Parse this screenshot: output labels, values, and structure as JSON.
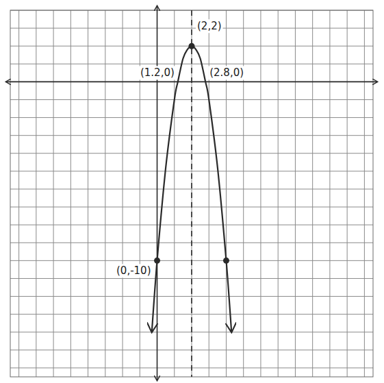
{
  "chart_data": {
    "type": "line",
    "x": [
      -0.3,
      0,
      0.5,
      1,
      1.2,
      1.5,
      1.75,
      2,
      2.25,
      2.5,
      2.8,
      3,
      3.5,
      4,
      4.3
    ],
    "series": [
      {
        "color": "#2a2a2a",
        "marker": "none",
        "line_style": "solid",
        "values": [
          -13.9,
          -10,
          -4.8,
          -1,
          0,
          1.3,
          1.8,
          2,
          1.8,
          1.3,
          0,
          -1,
          -4.8,
          -10,
          -13.9
        ]
      }
    ],
    "points": {
      "x": [
        2,
        0,
        4
      ],
      "y": [
        2,
        -10,
        -10
      ],
      "color": "#2a2a2a"
    },
    "symmetry_x": 2,
    "annotations": [
      {
        "text": "(2,2)",
        "x": 2,
        "y": 2
      },
      {
        "text": "(1.2,0)",
        "x": 1.2,
        "y": 0
      },
      {
        "text": "(2.8,0)",
        "x": 2.8,
        "y": 0
      },
      {
        "text": "(0,-10)",
        "x": 0,
        "y": -10
      }
    ],
    "xlim": [
      -8.5,
      12.5
    ],
    "ylim": [
      -16.5,
      4
    ],
    "xticks": [
      -8,
      -7,
      -6,
      -5,
      -4,
      -3,
      -2,
      -1,
      0,
      1,
      2,
      3,
      4,
      5,
      6,
      7,
      8,
      9,
      10,
      11,
      12
    ],
    "yticks": [
      -16,
      -15,
      -14,
      -13,
      -12,
      -11,
      -10,
      -9,
      -8,
      -7,
      -6,
      -5,
      -4,
      -3,
      -2,
      -1,
      0,
      1,
      2,
      3,
      4
    ],
    "grid": true,
    "tick_labels": false
  }
}
